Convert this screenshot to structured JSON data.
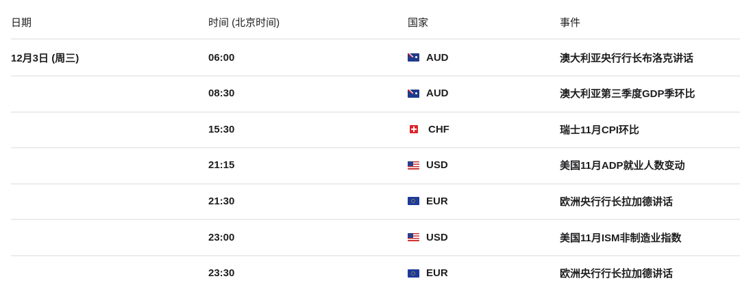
{
  "headers": {
    "date": "日期",
    "time": "时间 (北京时间)",
    "country": "国家",
    "event": "事件"
  },
  "rows": [
    {
      "date": "12月3日 (周三)",
      "time": "06:00",
      "flag": "aud",
      "currency": "AUD",
      "event": "澳大利亚央行行长布洛克讲话"
    },
    {
      "date": "",
      "time": "08:30",
      "flag": "aud",
      "currency": "AUD",
      "event": "澳大利亚第三季度GDP季环比"
    },
    {
      "date": "",
      "time": "15:30",
      "flag": "chf",
      "currency": "CHF",
      "event": "瑞士11月CPI环比"
    },
    {
      "date": "",
      "time": "21:15",
      "flag": "usd",
      "currency": "USD",
      "event": "美国11月ADP就业人数变动"
    },
    {
      "date": "",
      "time": "21:30",
      "flag": "eur",
      "currency": "EUR",
      "event": "欧洲央行行长拉加德讲话"
    },
    {
      "date": "",
      "time": "23:00",
      "flag": "usd",
      "currency": "USD",
      "event": "美国11月ISM非制造业指数"
    },
    {
      "date": "",
      "time": "23:30",
      "flag": "eur",
      "currency": "EUR",
      "event": "欧洲央行行长拉加德讲话"
    }
  ]
}
